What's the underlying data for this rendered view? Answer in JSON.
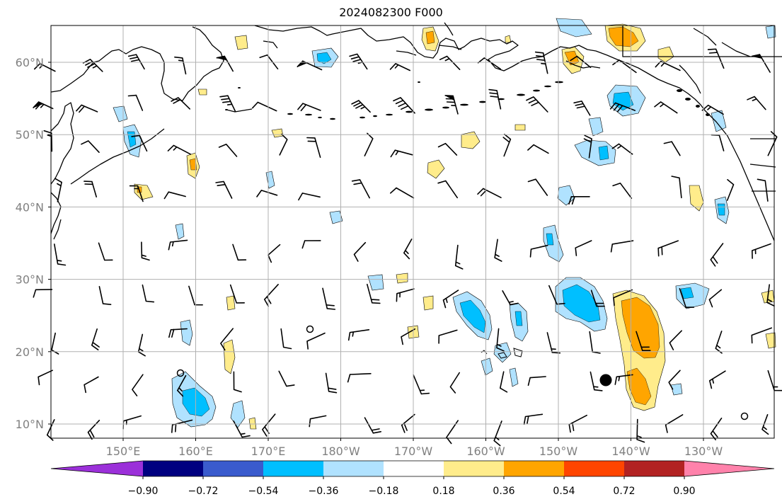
{
  "title": "2024082300 F000",
  "lat_labels": [
    "10°N",
    "20°N",
    "30°N",
    "40°N",
    "50°N",
    "60°N"
  ],
  "lon_labels": [
    "150°E",
    "160°E",
    "170°E",
    "180°W",
    "170°W",
    "160°W",
    "150°W",
    "140°W",
    "130°W"
  ],
  "colorbar": {
    "colors": [
      "#9b30d9",
      "#000080",
      "#3a5bcd",
      "#00bfff",
      "#b0e2ff",
      "#ffffff",
      "#ffec8b",
      "#ffa500",
      "#ff4500",
      "#b22222",
      "#ff82ab"
    ],
    "ticks": [
      "−0.90",
      "−0.72",
      "−0.54",
      "−0.36",
      "−0.18",
      "0.18",
      "0.36",
      "0.54",
      "0.72",
      "0.90"
    ]
  },
  "colors": {
    "neg_light": "#b0e2ff",
    "neg_mid": "#00bfff",
    "pos_light": "#ffec8b",
    "pos_mid": "#ffa500",
    "grid": "#b0b0b0",
    "tick_label": "#808080"
  }
}
